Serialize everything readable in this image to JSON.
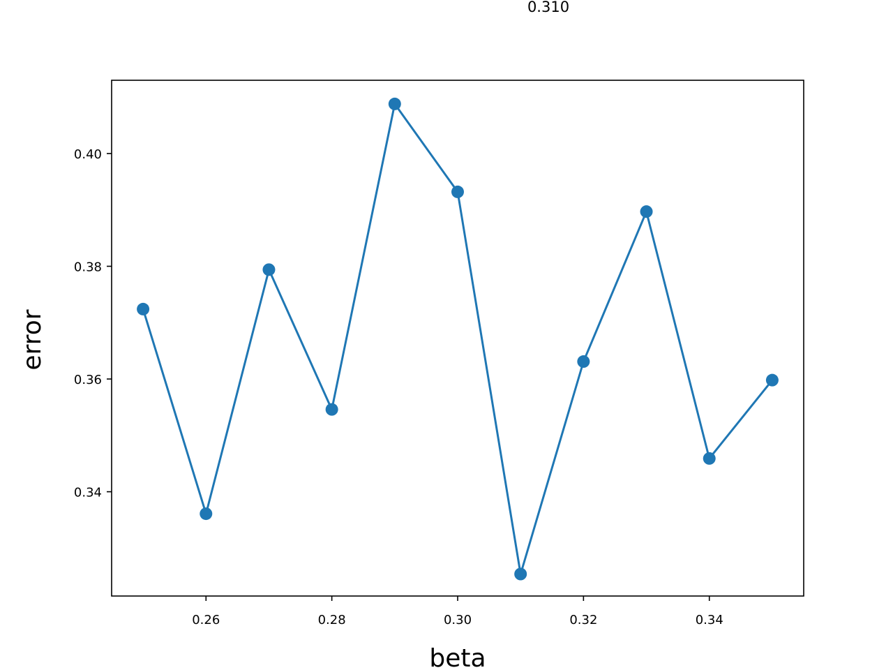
{
  "chart_data": {
    "type": "line",
    "title": "",
    "annotation": "0.310",
    "xlabel": "beta",
    "ylabel": "error",
    "xlim": [
      0.245,
      0.355
    ],
    "ylim": [
      0.3215,
      0.413
    ],
    "xticks": [
      0.26,
      0.28,
      0.3,
      0.32,
      0.34
    ],
    "xtick_labels": [
      "0.26",
      "0.28",
      "0.30",
      "0.32",
      "0.34"
    ],
    "yticks": [
      0.34,
      0.36,
      0.38,
      0.4
    ],
    "ytick_labels": [
      "0.34",
      "0.36",
      "0.38",
      "0.40"
    ],
    "grid": false,
    "color": "#1f77b4",
    "series": [
      {
        "marker": "circle",
        "x": [
          0.25,
          0.26,
          0.27,
          0.28,
          0.29,
          0.3,
          0.31,
          0.32,
          0.33,
          0.34,
          0.35
        ],
        "y": [
          0.3724,
          0.3361,
          0.3794,
          0.3546,
          0.4088,
          0.3932,
          0.3254,
          0.3631,
          0.3897,
          0.3459,
          0.3598
        ]
      }
    ]
  }
}
